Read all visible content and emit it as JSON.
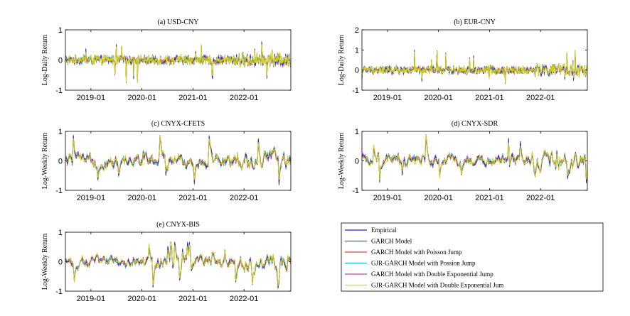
{
  "figure": {
    "background": "#ffffff"
  },
  "series_colors": {
    "Empirical": "#2222cc",
    "GARCH Model": "#2e8b2e",
    "GARCH Model with Poisson Jump": "#e03c3c",
    "GJR-GARCH Model with Possion Jump": "#22b8c8",
    "GARCH Model with Double Exponential Jump": "#c040c0",
    "GJR-GARCH Model with Double Exponential Jum": "#d8d800"
  },
  "legend": {
    "entries": [
      "Empirical",
      "GARCH Model",
      "GARCH Model with Poisson Jump",
      "GJR-GARCH Model with Possion Jump",
      "GARCH Model with Double Exponential Jump",
      "GJR-GARCH Model with Double Exponential Jum"
    ]
  },
  "chart_data": [
    {
      "type": "line",
      "title": "(a) USD-CNY",
      "ylabel": "Log-Daily Return",
      "xlabel": "",
      "ylim": [
        -1,
        1
      ],
      "yticks": [
        -1,
        0,
        1
      ],
      "xlim": [
        "2018-07",
        "2022-12"
      ],
      "xticks": [
        "2019-01",
        "2020-01",
        "2021-01",
        "2022-01"
      ],
      "grid": false,
      "frequency": "daily",
      "approx_range": [
        -0.75,
        0.6
      ],
      "series": [
        "Empirical",
        "GARCH Model",
        "GARCH Model with Poisson Jump",
        "GJR-GARCH Model with Possion Jump",
        "GARCH Model with Double Exponential Jump",
        "GJR-GARCH Model with Double Exponential Jum"
      ]
    },
    {
      "type": "line",
      "title": "(b) EUR-CNY",
      "ylabel": "Log-Daily Return",
      "xlabel": "",
      "ylim": [
        -1,
        2
      ],
      "yticks": [
        -1,
        0,
        1,
        2
      ],
      "xlim": [
        "2018-07",
        "2022-12"
      ],
      "xticks": [
        "2019-01",
        "2020-01",
        "2021-01",
        "2022-01"
      ],
      "grid": false,
      "frequency": "daily",
      "approx_range": [
        -0.65,
        1.15
      ],
      "series": [
        "Empirical",
        "GARCH Model",
        "GARCH Model with Poisson Jump",
        "GJR-GARCH Model with Possion Jump",
        "GARCH Model with Double Exponential Jump",
        "GJR-GARCH Model with Double Exponential Jum"
      ]
    },
    {
      "type": "line",
      "title": "(c) CNYX-CFETS",
      "ylabel": "Log-Weekly Return",
      "xlabel": "",
      "ylim": [
        -1,
        1
      ],
      "yticks": [
        -1,
        0,
        1
      ],
      "xlim": [
        "2018-07",
        "2022-12"
      ],
      "xticks": [
        "2019-01",
        "2020-01",
        "2021-01",
        "2022-01"
      ],
      "grid": false,
      "frequency": "weekly",
      "approx_range": [
        -0.8,
        0.95
      ],
      "series": [
        "Empirical",
        "GARCH Model",
        "GARCH Model with Poisson Jump",
        "GJR-GARCH Model with Possion Jump",
        "GARCH Model with Double Exponential Jump",
        "GJR-GARCH Model with Double Exponential Jum"
      ]
    },
    {
      "type": "line",
      "title": "(d) CNYX-SDR",
      "ylabel": "Log-Weekly Return",
      "xlabel": "",
      "ylim": [
        -1,
        1
      ],
      "yticks": [
        -1,
        0,
        1
      ],
      "xlim": [
        "2018-07",
        "2022-12"
      ],
      "xticks": [
        "2019-01",
        "2020-01",
        "2021-01",
        "2022-01"
      ],
      "grid": false,
      "frequency": "weekly",
      "approx_range": [
        -0.8,
        0.9
      ],
      "series": [
        "Empirical",
        "GARCH Model",
        "GARCH Model with Poisson Jump",
        "GJR-GARCH Model with Possion Jump",
        "GARCH Model with Double Exponential Jump",
        "GJR-GARCH Model with Double Exponential Jum"
      ]
    },
    {
      "type": "line",
      "title": "(e) CNYX-BIS",
      "ylabel": "Log-Weekly Return",
      "xlabel": "",
      "ylim": [
        -1,
        1
      ],
      "yticks": [
        -1,
        0,
        1
      ],
      "xlim": [
        "2018-07",
        "2022-12"
      ],
      "xticks": [
        "2019-01",
        "2020-01",
        "2021-01",
        "2022-01"
      ],
      "grid": false,
      "frequency": "weekly",
      "approx_range": [
        -0.9,
        0.65
      ],
      "series": [
        "Empirical",
        "GARCH Model",
        "GARCH Model with Poisson Jump",
        "GJR-GARCH Model with Possion Jump",
        "GARCH Model with Double Exponential Jump",
        "GJR-GARCH Model with Double Exponential Jum"
      ]
    }
  ]
}
